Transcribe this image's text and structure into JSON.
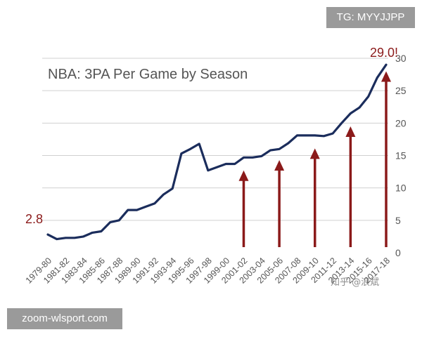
{
  "overlay": {
    "tag_label": "TG: MYYJJPP",
    "site_label": "zoom-wlsport.com",
    "watermark": "知乎 @浪斌"
  },
  "chart_data": {
    "type": "line",
    "title": "NBA: 3PA Per Game by Season",
    "xlabel": "",
    "ylabel": "",
    "ylim": [
      0,
      30
    ],
    "yticks": [
      0,
      5,
      10,
      15,
      20,
      25,
      30
    ],
    "y_axis_side": "right",
    "grid": true,
    "legend": "none",
    "x_tick_labels": [
      "1979-80",
      "1981-82",
      "1983-84",
      "1985-86",
      "1987-88",
      "1989-90",
      "1991-92",
      "1993-94",
      "1995-96",
      "1997-98",
      "1999-00",
      "2001-02",
      "2003-04",
      "2005-06",
      "2007-08",
      "2009-10",
      "2011-12",
      "2013-14",
      "2015-16",
      "2017-18"
    ],
    "series": [
      {
        "x": [
          "1979-80",
          "1980-81",
          "1981-82",
          "1982-83",
          "1983-84",
          "1984-85",
          "1985-86",
          "1986-87",
          "1987-88",
          "1988-89",
          "1989-90",
          "1990-91",
          "1991-92",
          "1992-93",
          "1993-94",
          "1994-95",
          "1995-96",
          "1996-97",
          "1997-98",
          "1998-99",
          "1999-00",
          "2000-01",
          "2001-02",
          "2002-03",
          "2003-04",
          "2004-05",
          "2005-06",
          "2006-07",
          "2007-08",
          "2008-09",
          "2009-10",
          "2010-11",
          "2011-12",
          "2012-13",
          "2013-14",
          "2014-15",
          "2015-16",
          "2016-17",
          "2017-18"
        ],
        "values": [
          2.8,
          2.1,
          2.3,
          2.3,
          2.5,
          3.1,
          3.3,
          4.7,
          5.0,
          6.6,
          6.6,
          7.1,
          7.6,
          9.0,
          9.9,
          15.3,
          16.0,
          16.8,
          12.7,
          13.2,
          13.7,
          13.7,
          14.7,
          14.7,
          14.9,
          15.8,
          16.0,
          16.9,
          18.1,
          18.1,
          18.1,
          18.0,
          18.4,
          20.0,
          21.5,
          22.4,
          24.1,
          27.0,
          29.0
        ],
        "color": "#1b2d5c"
      }
    ],
    "annotations": [
      {
        "text": "2.8",
        "at": "1979-80",
        "value": 2.8,
        "color": "#8b1a1a"
      },
      {
        "text": "29.0!",
        "at": "2017-18",
        "value": 29.0,
        "color": "#8b1a1a"
      }
    ],
    "arrows": [
      {
        "at": "2001-02",
        "to_value": 12.7
      },
      {
        "at": "2005-06",
        "to_value": 14.3
      },
      {
        "at": "2009-10",
        "to_value": 16.1
      },
      {
        "at": "2013-14",
        "to_value": 19.5
      },
      {
        "at": "2017-18",
        "to_value": 28.0
      }
    ],
    "colors": {
      "line": "#1b2d5c",
      "arrow": "#8b1a1a",
      "grid": "#d0d0d0",
      "text": "#555555"
    }
  }
}
